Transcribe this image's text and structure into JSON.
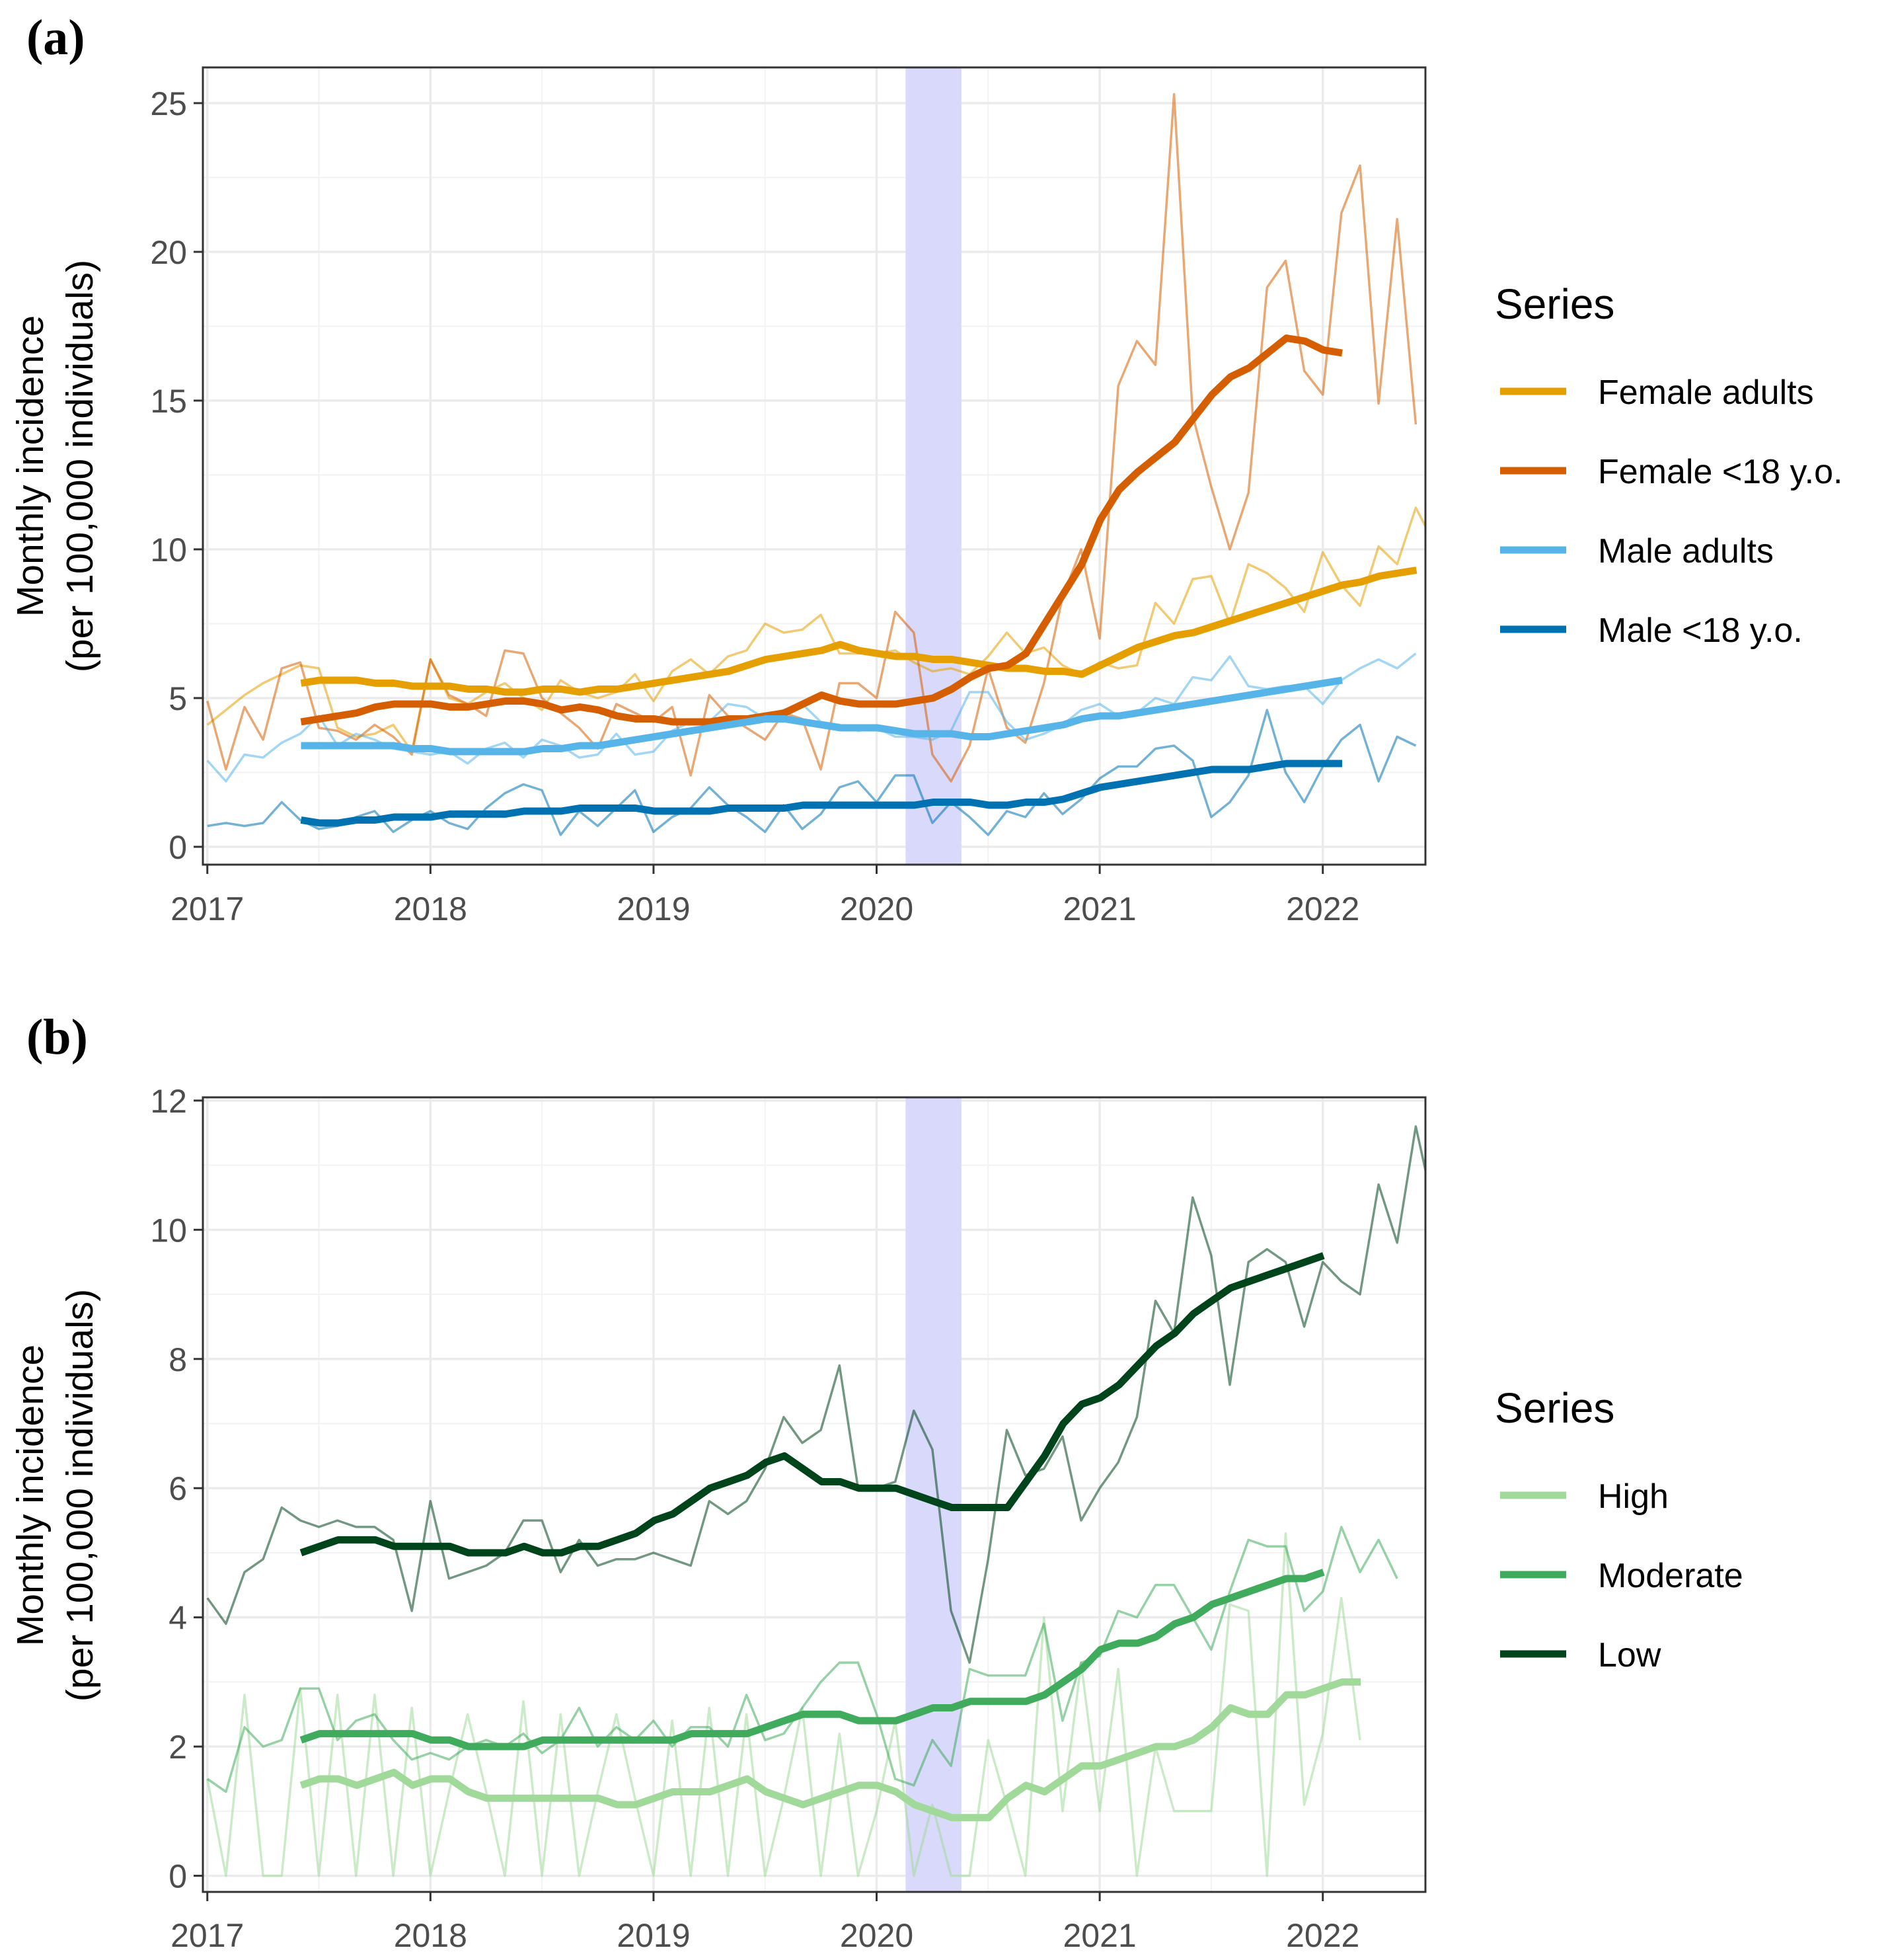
{
  "panels": [
    {
      "label": "(a)"
    },
    {
      "label": "(b)"
    }
  ],
  "chart_data": [
    {
      "type": "line",
      "panel": "(a)",
      "title": "",
      "xlabel": "",
      "ylabel": "Monthly incidence",
      "ylabel_line2": "(per 100,000 individuals)",
      "xlim": [
        2016.98,
        2022.46
      ],
      "ylim": [
        -0.6,
        26.2
      ],
      "xticks": [
        2017,
        2018,
        2019,
        2020,
        2021,
        2022
      ],
      "xtick_labels": [
        "2017",
        "2018",
        "2019",
        "2020",
        "2021",
        "2022"
      ],
      "yticks": [
        0,
        5,
        10,
        15,
        20,
        25
      ],
      "ytick_labels": [
        "0",
        "5",
        "10",
        "15",
        "20",
        "25"
      ],
      "grid": true,
      "shaded_region": {
        "x_start": 2020.13,
        "x_end": 2020.38,
        "color": "#d9d9fb"
      },
      "legend": {
        "title": "Series",
        "position": "right"
      },
      "series": [
        {
          "name": "Female adults",
          "color": "#E69F00",
          "raw_x_start": 2017.0,
          "raw": [
            4.1,
            4.6,
            5.1,
            5.5,
            5.8,
            6.1,
            6.0,
            4.0,
            3.7,
            3.8,
            4.1,
            3.2,
            6.3,
            5.0,
            4.8,
            5.2,
            5.5,
            5.0,
            4.6,
            5.6,
            5.2,
            5.0,
            5.2,
            5.8,
            4.9,
            5.9,
            6.3,
            5.8,
            6.4,
            6.6,
            7.5,
            7.2,
            7.3,
            7.8,
            6.5,
            6.5,
            6.5,
            6.6,
            6.2,
            5.9,
            6.0,
            5.8,
            6.4,
            7.2,
            6.5,
            6.7,
            6.1,
            5.8,
            6.2,
            6.0,
            6.1,
            8.2,
            7.5,
            9.0,
            9.1,
            7.5,
            9.5,
            9.2,
            8.7,
            7.9,
            9.9,
            8.8,
            8.1,
            10.1,
            9.5,
            11.4,
            10.2
          ],
          "trend_x_start": 2017.42,
          "trend": [
            5.5,
            5.6,
            5.6,
            5.6,
            5.5,
            5.5,
            5.4,
            5.4,
            5.4,
            5.3,
            5.3,
            5.2,
            5.2,
            5.3,
            5.3,
            5.2,
            5.3,
            5.3,
            5.4,
            5.5,
            5.6,
            5.7,
            5.8,
            5.9,
            6.1,
            6.3,
            6.4,
            6.5,
            6.6,
            6.8,
            6.6,
            6.5,
            6.4,
            6.4,
            6.3,
            6.3,
            6.2,
            6.1,
            6.0,
            6.0,
            5.9,
            5.9,
            5.8,
            6.1,
            6.4,
            6.7,
            6.9,
            7.1,
            7.2,
            7.4,
            7.6,
            7.8,
            8.0,
            8.2,
            8.4,
            8.6,
            8.8,
            8.9,
            9.1,
            9.2,
            9.3
          ]
        },
        {
          "name": "Female <18 y.o.",
          "color": "#D55E00",
          "raw_x_start": 2017.0,
          "raw": [
            4.9,
            2.6,
            4.7,
            3.6,
            6.0,
            6.2,
            4.0,
            3.9,
            3.6,
            4.1,
            3.7,
            3.1,
            6.3,
            5.1,
            4.8,
            4.4,
            6.6,
            6.5,
            5.0,
            4.5,
            4.0,
            3.3,
            4.8,
            4.5,
            4.2,
            4.7,
            2.4,
            5.1,
            4.4,
            4.0,
            3.6,
            4.5,
            4.3,
            2.6,
            5.5,
            5.5,
            5.0,
            7.9,
            7.2,
            3.1,
            2.2,
            3.4,
            6.0,
            4.0,
            3.5,
            5.5,
            8.4,
            10.0,
            7.0,
            15.5,
            17.0,
            16.2,
            25.3,
            14.5,
            12.1,
            10.0,
            11.9,
            18.8,
            19.7,
            16.0,
            15.2,
            21.3,
            22.9,
            14.9,
            21.1,
            14.2
          ],
          "trend_x_start": 2017.42,
          "trend": [
            4.2,
            4.3,
            4.4,
            4.5,
            4.7,
            4.8,
            4.8,
            4.8,
            4.7,
            4.7,
            4.8,
            4.9,
            4.9,
            4.8,
            4.6,
            4.7,
            4.6,
            4.4,
            4.3,
            4.3,
            4.2,
            4.2,
            4.2,
            4.3,
            4.3,
            4.4,
            4.5,
            4.8,
            5.1,
            4.9,
            4.8,
            4.8,
            4.8,
            4.9,
            5.0,
            5.3,
            5.7,
            6.0,
            6.1,
            6.5,
            7.5,
            8.5,
            9.5,
            11.0,
            12.0,
            12.6,
            13.1,
            13.6,
            14.4,
            15.2,
            15.8,
            16.1,
            16.6,
            17.1,
            17.0,
            16.7,
            16.6
          ]
        },
        {
          "name": "Male adults",
          "color": "#56B4E9",
          "raw_x_start": 2017.0,
          "raw": [
            2.9,
            2.2,
            3.1,
            3.0,
            3.5,
            3.8,
            4.4,
            3.4,
            3.8,
            3.6,
            3.3,
            3.2,
            3.1,
            3.2,
            2.8,
            3.3,
            3.5,
            3.0,
            3.6,
            3.4,
            3.0,
            3.1,
            3.8,
            3.1,
            3.2,
            3.9,
            4.2,
            4.2,
            4.8,
            4.7,
            4.3,
            4.6,
            4.8,
            4.2,
            4.1,
            3.9,
            4.0,
            3.7,
            3.7,
            3.6,
            3.9,
            5.2,
            5.2,
            4.2,
            3.6,
            3.8,
            4.1,
            4.6,
            4.8,
            4.4,
            4.5,
            5.0,
            4.8,
            5.7,
            5.6,
            6.4,
            5.4,
            5.3,
            5.4,
            5.4,
            4.8,
            5.6,
            6.0,
            6.3,
            6.0,
            6.5
          ],
          "trend_x_start": 2017.42,
          "trend": [
            3.4,
            3.4,
            3.4,
            3.4,
            3.4,
            3.4,
            3.3,
            3.3,
            3.2,
            3.2,
            3.2,
            3.2,
            3.2,
            3.3,
            3.3,
            3.4,
            3.4,
            3.5,
            3.6,
            3.7,
            3.8,
            3.9,
            4.0,
            4.1,
            4.2,
            4.3,
            4.3,
            4.2,
            4.1,
            4.0,
            4.0,
            4.0,
            3.9,
            3.8,
            3.8,
            3.8,
            3.7,
            3.7,
            3.8,
            3.9,
            4.0,
            4.1,
            4.3,
            4.4,
            4.4,
            4.5,
            4.6,
            4.7,
            4.8,
            4.9,
            5.0,
            5.1,
            5.2,
            5.3,
            5.4,
            5.5,
            5.6
          ]
        },
        {
          "name": "Male <18 y.o.",
          "color": "#0072B2",
          "raw_x_start": 2017.0,
          "raw": [
            0.7,
            0.8,
            0.7,
            0.8,
            1.5,
            0.9,
            0.6,
            0.7,
            1.0,
            1.2,
            0.5,
            0.9,
            1.2,
            0.8,
            0.6,
            1.3,
            1.8,
            2.1,
            1.9,
            0.4,
            1.2,
            0.7,
            1.3,
            1.9,
            0.5,
            1.0,
            1.3,
            2.0,
            1.4,
            1.0,
            0.5,
            1.4,
            0.6,
            1.1,
            2.0,
            2.2,
            1.5,
            2.4,
            2.4,
            0.8,
            1.5,
            1.0,
            0.4,
            1.2,
            1.0,
            1.8,
            1.1,
            1.6,
            2.3,
            2.7,
            2.7,
            3.3,
            3.4,
            2.9,
            1.0,
            1.5,
            2.4,
            4.6,
            2.5,
            1.5,
            2.7,
            3.6,
            4.1,
            2.2,
            3.7,
            3.4
          ],
          "trend_x_start": 2017.42,
          "trend": [
            0.9,
            0.8,
            0.8,
            0.9,
            0.9,
            1.0,
            1.0,
            1.0,
            1.1,
            1.1,
            1.1,
            1.1,
            1.2,
            1.2,
            1.2,
            1.3,
            1.3,
            1.3,
            1.3,
            1.2,
            1.2,
            1.2,
            1.2,
            1.3,
            1.3,
            1.3,
            1.3,
            1.4,
            1.4,
            1.4,
            1.4,
            1.4,
            1.4,
            1.4,
            1.5,
            1.5,
            1.5,
            1.4,
            1.4,
            1.5,
            1.5,
            1.6,
            1.8,
            2.0,
            2.1,
            2.2,
            2.3,
            2.4,
            2.5,
            2.6,
            2.6,
            2.6,
            2.7,
            2.8,
            2.8,
            2.8,
            2.8
          ]
        }
      ]
    },
    {
      "type": "line",
      "panel": "(b)",
      "title": "",
      "xlabel": "",
      "ylabel": "Monthly incidence",
      "ylabel_line2": "(per 100,000 individuals)",
      "xlim": [
        2016.98,
        2022.46
      ],
      "ylim": [
        -0.25,
        12.05
      ],
      "xticks": [
        2017,
        2018,
        2019,
        2020,
        2021,
        2022
      ],
      "xtick_labels": [
        "2017",
        "2018",
        "2019",
        "2020",
        "2021",
        "2022"
      ],
      "yticks": [
        0,
        2,
        4,
        6,
        8,
        10,
        12
      ],
      "ytick_labels": [
        "0",
        "2",
        "4",
        "6",
        "8",
        "10",
        "12"
      ],
      "grid": true,
      "shaded_region": {
        "x_start": 2020.13,
        "x_end": 2020.38,
        "color": "#d9d9fb"
      },
      "legend": {
        "title": "Series",
        "position": "right"
      },
      "series": [
        {
          "name": "High",
          "color": "#a1d99b",
          "raw_x_start": 2017.0,
          "raw": [
            1.5,
            0.0,
            2.8,
            0.0,
            0.0,
            2.9,
            0.0,
            2.8,
            0.0,
            2.8,
            0.0,
            2.6,
            0.0,
            1.3,
            2.5,
            1.3,
            0.0,
            2.7,
            0.0,
            2.5,
            0.0,
            1.3,
            2.5,
            1.2,
            0.0,
            2.4,
            0.0,
            2.6,
            0.0,
            2.5,
            0.0,
            1.2,
            2.6,
            0.0,
            2.2,
            0.0,
            1.0,
            2.4,
            0.0,
            1.1,
            0.0,
            0.0,
            2.1,
            1.1,
            0.0,
            4.0,
            1.0,
            3.3,
            1.0,
            3.2,
            0.0,
            2.0,
            1.0,
            1.0,
            1.0,
            4.2,
            4.1,
            0.0,
            5.3,
            1.1,
            2.2,
            4.3,
            2.1
          ],
          "trend_x_start": 2017.42,
          "trend": [
            1.4,
            1.5,
            1.5,
            1.4,
            1.5,
            1.6,
            1.4,
            1.5,
            1.5,
            1.3,
            1.2,
            1.2,
            1.2,
            1.2,
            1.2,
            1.2,
            1.2,
            1.1,
            1.1,
            1.2,
            1.3,
            1.3,
            1.3,
            1.4,
            1.5,
            1.3,
            1.2,
            1.1,
            1.2,
            1.3,
            1.4,
            1.4,
            1.3,
            1.1,
            1.0,
            0.9,
            0.9,
            0.9,
            1.2,
            1.4,
            1.3,
            1.5,
            1.7,
            1.7,
            1.8,
            1.9,
            2.0,
            2.0,
            2.1,
            2.3,
            2.6,
            2.5,
            2.5,
            2.8,
            2.8,
            2.9,
            3.0,
            3.0
          ]
        },
        {
          "name": "Moderate",
          "color": "#41ab5d",
          "raw_x_start": 2017.0,
          "raw": [
            1.5,
            1.3,
            2.3,
            2.0,
            2.1,
            2.9,
            2.9,
            2.1,
            2.4,
            2.5,
            2.1,
            1.8,
            1.9,
            1.8,
            2.0,
            2.1,
            2.0,
            2.2,
            1.9,
            2.1,
            2.6,
            2.0,
            2.3,
            2.1,
            2.4,
            2.0,
            2.3,
            2.3,
            2.0,
            2.8,
            2.1,
            2.2,
            2.6,
            3.0,
            3.3,
            3.3,
            2.5,
            1.5,
            1.4,
            2.1,
            1.7,
            3.2,
            3.1,
            3.1,
            3.1,
            3.9,
            2.4,
            3.3,
            3.4,
            4.1,
            4.0,
            4.5,
            4.5,
            4.0,
            3.5,
            4.4,
            5.2,
            5.1,
            5.1,
            4.1,
            4.4,
            5.4,
            4.7,
            5.2,
            4.6
          ],
          "trend_x_start": 2017.42,
          "trend": [
            2.1,
            2.2,
            2.2,
            2.2,
            2.2,
            2.2,
            2.2,
            2.1,
            2.1,
            2.0,
            2.0,
            2.0,
            2.0,
            2.1,
            2.1,
            2.1,
            2.1,
            2.1,
            2.1,
            2.1,
            2.1,
            2.2,
            2.2,
            2.2,
            2.2,
            2.3,
            2.4,
            2.5,
            2.5,
            2.5,
            2.4,
            2.4,
            2.4,
            2.5,
            2.6,
            2.6,
            2.7,
            2.7,
            2.7,
            2.7,
            2.8,
            3.0,
            3.2,
            3.5,
            3.6,
            3.6,
            3.7,
            3.9,
            4.0,
            4.2,
            4.3,
            4.4,
            4.5,
            4.6,
            4.6,
            4.7
          ]
        },
        {
          "name": "Low",
          "color": "#00441b",
          "raw_x_start": 2017.0,
          "raw": [
            4.3,
            3.9,
            4.7,
            4.9,
            5.7,
            5.5,
            5.4,
            5.5,
            5.4,
            5.4,
            5.2,
            4.1,
            5.8,
            4.6,
            4.7,
            4.8,
            5.0,
            5.5,
            5.5,
            4.7,
            5.2,
            4.8,
            4.9,
            4.9,
            5.0,
            4.9,
            4.8,
            5.8,
            5.6,
            5.8,
            6.3,
            7.1,
            6.7,
            6.9,
            7.9,
            6.0,
            6.0,
            6.1,
            7.2,
            6.6,
            4.1,
            3.3,
            4.9,
            6.9,
            6.2,
            6.3,
            6.8,
            5.5,
            6.0,
            6.4,
            7.1,
            8.9,
            8.4,
            10.5,
            9.6,
            7.6,
            9.5,
            9.7,
            9.5,
            8.5,
            9.5,
            9.2,
            9.0,
            10.7,
            9.8,
            11.6,
            10.3
          ],
          "trend_x_start": 2017.42,
          "trend": [
            5.0,
            5.1,
            5.2,
            5.2,
            5.2,
            5.1,
            5.1,
            5.1,
            5.1,
            5.0,
            5.0,
            5.0,
            5.1,
            5.0,
            5.0,
            5.1,
            5.1,
            5.2,
            5.3,
            5.5,
            5.6,
            5.8,
            6.0,
            6.1,
            6.2,
            6.4,
            6.5,
            6.3,
            6.1,
            6.1,
            6.0,
            6.0,
            6.0,
            5.9,
            5.8,
            5.7,
            5.7,
            5.7,
            5.7,
            6.1,
            6.5,
            7.0,
            7.3,
            7.4,
            7.6,
            7.9,
            8.2,
            8.4,
            8.7,
            8.9,
            9.1,
            9.2,
            9.3,
            9.4,
            9.5,
            9.6
          ]
        }
      ]
    }
  ]
}
